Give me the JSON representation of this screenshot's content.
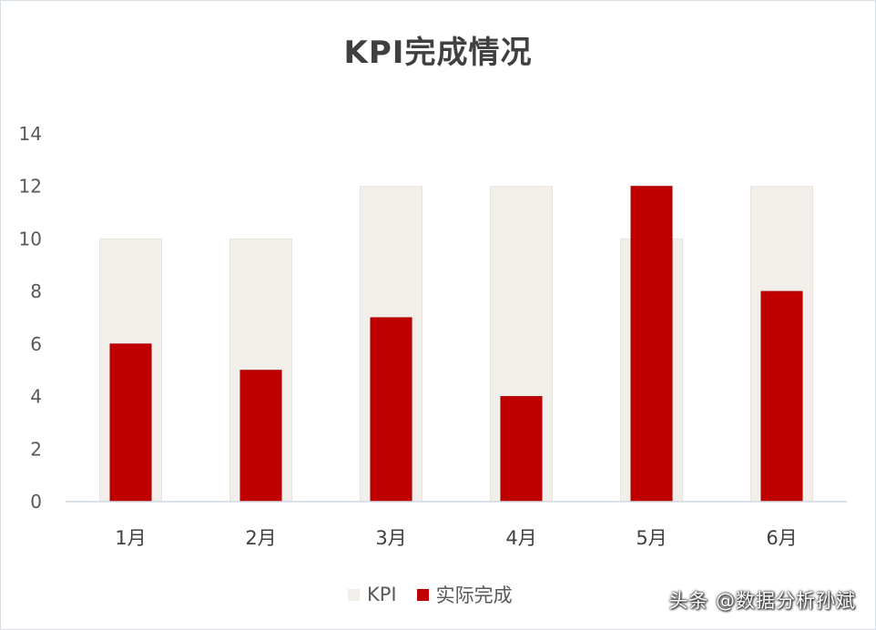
{
  "chart_data": {
    "type": "bar",
    "title": "KPI完成情况",
    "categories": [
      "1月",
      "2月",
      "3月",
      "4月",
      "5月",
      "6月"
    ],
    "series": [
      {
        "name": "KPI",
        "values": [
          10,
          10,
          12,
          12,
          10,
          12
        ],
        "color": "#f2eeea"
      },
      {
        "name": "实际完成",
        "values": [
          6,
          5,
          7,
          4,
          12,
          8
        ],
        "color": "#c00000"
      }
    ],
    "ylim": [
      0,
      14
    ],
    "yticks": [
      0,
      2,
      4,
      6,
      8,
      10,
      12,
      14
    ],
    "grid": false,
    "legend_position": "bottom",
    "overlapped": true
  },
  "watermark": "头条 @数据分析孙斌"
}
